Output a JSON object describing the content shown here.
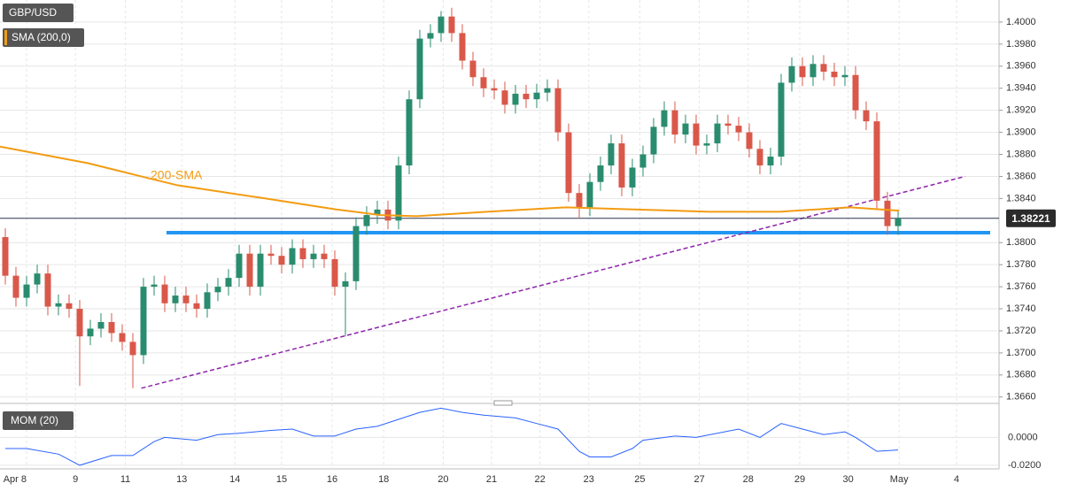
{
  "chart_data": {
    "type": "candlestick",
    "title": "GBP/USD",
    "grid": true,
    "up_color": "#2a8c6e",
    "down_color": "#d9584a",
    "xlim": [
      -0.5,
      93.5
    ],
    "ylim": [
      1.3655,
      1.402
    ],
    "yticks": [
      {
        "value": 1.366,
        "label": "1.3660"
      },
      {
        "value": 1.368,
        "label": "1.3680"
      },
      {
        "value": 1.37,
        "label": "1.3700"
      },
      {
        "value": 1.372,
        "label": "1.3720"
      },
      {
        "value": 1.374,
        "label": "1.3740"
      },
      {
        "value": 1.376,
        "label": "1.3760"
      },
      {
        "value": 1.378,
        "label": "1.3780"
      },
      {
        "value": 1.38,
        "label": "1.3800"
      },
      {
        "value": 1.384,
        "label": "1.3840"
      },
      {
        "value": 1.386,
        "label": "1.3860"
      },
      {
        "value": 1.388,
        "label": "1.3880"
      },
      {
        "value": 1.39,
        "label": "1.3900"
      },
      {
        "value": 1.392,
        "label": "1.3920"
      },
      {
        "value": 1.394,
        "label": "1.3940"
      },
      {
        "value": 1.396,
        "label": "1.3960"
      },
      {
        "value": 1.398,
        "label": "1.3980"
      },
      {
        "value": 1.4,
        "label": "1.4000"
      }
    ],
    "xticks": [
      {
        "value": 2,
        "label": "Apr  8"
      },
      {
        "value": 6.6,
        "label": "9"
      },
      {
        "value": 11.3,
        "label": "11"
      },
      {
        "value": 16.6,
        "label": "13"
      },
      {
        "value": 21.6,
        "label": "14"
      },
      {
        "value": 26,
        "label": "15"
      },
      {
        "value": 30.75,
        "label": "16"
      },
      {
        "value": 35.6,
        "label": "18"
      },
      {
        "value": 41.2,
        "label": "20"
      },
      {
        "value": 45.75,
        "label": "21"
      },
      {
        "value": 50.3,
        "label": "22"
      },
      {
        "value": 54.9,
        "label": "23"
      },
      {
        "value": 59.7,
        "label": "25"
      },
      {
        "value": 65.3,
        "label": "27"
      },
      {
        "value": 69.9,
        "label": "28"
      },
      {
        "value": 74.75,
        "label": "29"
      },
      {
        "value": 79.3,
        "label": "30"
      },
      {
        "value": 84.1,
        "label": "May"
      },
      {
        "value": 89.5,
        "label": "4"
      }
    ],
    "series": [
      {
        "name": "GBP/USD",
        "open": [
          1.3805,
          1.377,
          1.375,
          1.3762,
          1.3772,
          1.3742,
          1.3745,
          1.374,
          1.3715,
          1.3722,
          1.3728,
          1.3718,
          1.371,
          1.3698,
          1.376,
          1.3762,
          1.3745,
          1.3752,
          1.3745,
          1.374,
          1.3755,
          1.376,
          1.3768,
          1.379,
          1.376,
          1.379,
          1.3788,
          1.378,
          1.3795,
          1.3785,
          1.379,
          1.3785,
          1.376,
          1.3765,
          1.3815,
          1.3825,
          1.383,
          1.382,
          1.387,
          1.393,
          1.3985,
          1.399,
          1.4005,
          1.399,
          1.3965,
          1.395,
          1.394,
          1.3938,
          1.3925,
          1.3935,
          1.393,
          1.3936,
          1.394,
          1.39,
          1.3845,
          1.3832,
          1.3855,
          1.387,
          1.389,
          1.385,
          1.3868,
          1.388,
          1.3905,
          1.392,
          1.3898,
          1.3908,
          1.3888,
          1.389,
          1.3908,
          1.3906,
          1.39,
          1.3885,
          1.387,
          1.3878,
          1.3945,
          1.396,
          1.395,
          1.3962,
          1.3955,
          1.395,
          1.3952,
          1.392,
          1.391,
          1.3838,
          1.3815
        ],
        "high": [
          1.3813,
          1.3778,
          1.377,
          1.378,
          1.378,
          1.3753,
          1.3753,
          1.3748,
          1.373,
          1.3736,
          1.3736,
          1.3726,
          1.3718,
          1.3768,
          1.377,
          1.377,
          1.376,
          1.376,
          1.3753,
          1.3763,
          1.3768,
          1.3776,
          1.3798,
          1.3798,
          1.3798,
          1.3798,
          1.3796,
          1.3803,
          1.3803,
          1.3798,
          1.3798,
          1.3793,
          1.3773,
          1.3823,
          1.3833,
          1.3838,
          1.3838,
          1.3878,
          1.3938,
          1.3993,
          1.3998,
          1.401,
          1.4013,
          1.3998,
          1.3973,
          1.3958,
          1.3948,
          1.3946,
          1.3943,
          1.3943,
          1.3944,
          1.3948,
          1.3948,
          1.3908,
          1.3853,
          1.3863,
          1.3878,
          1.3898,
          1.3898,
          1.3876,
          1.3888,
          1.3913,
          1.3928,
          1.3928,
          1.3916,
          1.3916,
          1.3898,
          1.3916,
          1.3916,
          1.3914,
          1.3908,
          1.3893,
          1.3886,
          1.3953,
          1.3968,
          1.3968,
          1.397,
          1.397,
          1.3963,
          1.396,
          1.396,
          1.3928,
          1.3918,
          1.3846,
          1.383
        ],
        "low": [
          1.3762,
          1.3742,
          1.3742,
          1.3754,
          1.3734,
          1.3734,
          1.3732,
          1.367,
          1.3707,
          1.3714,
          1.371,
          1.3702,
          1.3668,
          1.369,
          1.3752,
          1.3737,
          1.3737,
          1.3737,
          1.3732,
          1.3732,
          1.3747,
          1.3752,
          1.376,
          1.3752,
          1.3752,
          1.378,
          1.3772,
          1.3772,
          1.3777,
          1.3777,
          1.3777,
          1.3752,
          1.3715,
          1.3757,
          1.3807,
          1.3817,
          1.3812,
          1.3812,
          1.3862,
          1.3922,
          1.3977,
          1.3982,
          1.3982,
          1.3957,
          1.3942,
          1.3932,
          1.393,
          1.3917,
          1.3917,
          1.3922,
          1.3922,
          1.3928,
          1.3892,
          1.3837,
          1.3822,
          1.3824,
          1.3847,
          1.3862,
          1.3842,
          1.3842,
          1.386,
          1.3872,
          1.3897,
          1.389,
          1.389,
          1.388,
          1.388,
          1.3882,
          1.3898,
          1.3892,
          1.3877,
          1.3862,
          1.3862,
          1.387,
          1.3937,
          1.3942,
          1.3942,
          1.3947,
          1.3942,
          1.3942,
          1.3912,
          1.3902,
          1.383,
          1.3807,
          1.3807
        ],
        "close": [
          1.377,
          1.375,
          1.3762,
          1.3772,
          1.3742,
          1.3745,
          1.374,
          1.3715,
          1.3722,
          1.3728,
          1.3718,
          1.371,
          1.3698,
          1.376,
          1.3762,
          1.3745,
          1.3752,
          1.3745,
          1.374,
          1.3755,
          1.376,
          1.3768,
          1.379,
          1.376,
          1.379,
          1.3788,
          1.378,
          1.3795,
          1.3785,
          1.379,
          1.3785,
          1.376,
          1.3765,
          1.3815,
          1.3825,
          1.383,
          1.382,
          1.387,
          1.393,
          1.3985,
          1.399,
          1.4005,
          1.399,
          1.3965,
          1.395,
          1.394,
          1.3938,
          1.3925,
          1.3935,
          1.393,
          1.3936,
          1.394,
          1.39,
          1.3845,
          1.3832,
          1.3855,
          1.387,
          1.389,
          1.385,
          1.3868,
          1.388,
          1.3905,
          1.392,
          1.3898,
          1.3908,
          1.3888,
          1.389,
          1.3908,
          1.3906,
          1.39,
          1.3885,
          1.387,
          1.3878,
          1.3945,
          1.396,
          1.395,
          1.3962,
          1.3955,
          1.395,
          1.3952,
          1.392,
          1.391,
          1.3838,
          1.3815,
          1.3822
        ]
      }
    ],
    "sma": {
      "name": "SMA (200,0)",
      "annotation": "200-SMA",
      "color": "#f39c12",
      "x": [
        -0.5,
        7.8,
        12.8,
        16.2,
        24.5,
        31.2,
        35.3,
        38.7,
        45.3,
        52.8,
        59.5,
        66.2,
        72.8,
        79.5,
        84.1
      ],
      "values": [
        1.3887,
        1.3872,
        1.386,
        1.3852,
        1.384,
        1.383,
        1.3825,
        1.3824,
        1.3828,
        1.3832,
        1.383,
        1.3828,
        1.3828,
        1.3832,
        1.3829
      ]
    },
    "last_price": {
      "value": 1.38221,
      "label": "1.38221"
    },
    "support": {
      "value": 1.3809,
      "color": "#2196f3"
    },
    "trendline": {
      "x": [
        12.8,
        90.3
      ],
      "values": [
        1.3668,
        1.386
      ],
      "color": "#8e24aa"
    },
    "momentum": {
      "name": "MOM (20)",
      "color": "#2962ff",
      "ylim": [
        -0.0226,
        0.0206
      ],
      "yticks": [
        {
          "value": 0,
          "label": "0.0000"
        },
        {
          "value": -0.02,
          "label": "-0.0200"
        }
      ],
      "x": [
        0,
        2,
        5,
        7,
        10,
        12,
        14,
        15,
        18,
        20,
        22,
        25,
        27,
        29,
        31,
        33,
        35,
        39,
        41,
        43,
        45,
        48,
        50,
        52,
        54,
        55,
        57,
        59,
        60,
        63,
        65,
        69,
        71,
        73,
        75,
        77,
        79,
        80,
        82,
        84
      ],
      "values": [
        -0.008,
        -0.008,
        -0.012,
        -0.02,
        -0.013,
        -0.013,
        -0.003,
        0,
        -0.002,
        0.002,
        0.003,
        0.005,
        0.006,
        0.001,
        0.001,
        0.006,
        0.008,
        0.018,
        0.021,
        0.018,
        0.016,
        0.014,
        0.01,
        0.006,
        -0.01,
        -0.014,
        -0.014,
        -0.008,
        -0.002,
        0.001,
        0,
        0.006,
        0,
        0.01,
        0.006,
        0.002,
        0.004,
        0,
        -0.01,
        -0.009
      ]
    }
  }
}
